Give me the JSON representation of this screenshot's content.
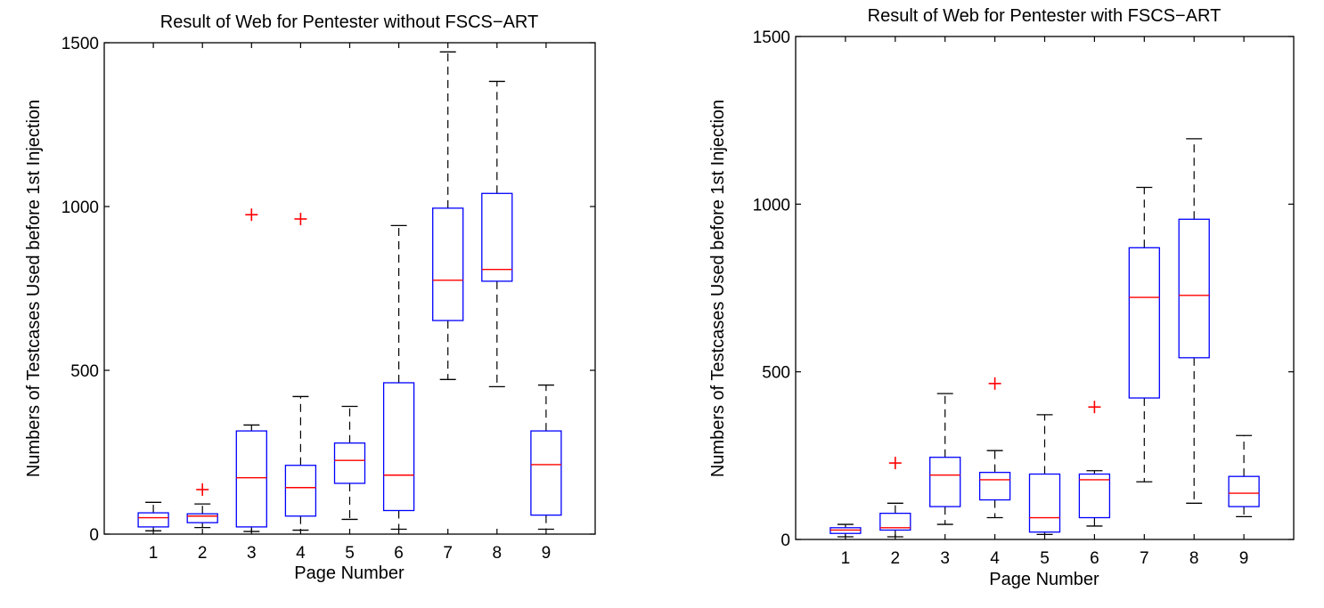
{
  "chart_data": [
    {
      "type": "boxplot",
      "title": "Result of Web for Pentester without FSCS−ART",
      "xlabel": "Page Number",
      "ylabel": "Numbers of Testcases Used before 1st Injection",
      "ylim": [
        0,
        1500
      ],
      "yticks": [
        0,
        500,
        1000,
        1500
      ],
      "categories": [
        "1",
        "2",
        "3",
        "4",
        "5",
        "6",
        "7",
        "8",
        "9"
      ],
      "grid": false,
      "colors": {
        "box": "#0000ff",
        "median": "#ff0000",
        "whisker": "#000000",
        "outlier": "#ff0000"
      },
      "boxes": [
        {
          "category": "1",
          "whisker_low": 10,
          "q1": 22,
          "median": 50,
          "q3": 65,
          "whisker_high": 97,
          "outliers": []
        },
        {
          "category": "2",
          "whisker_low": 20,
          "q1": 35,
          "median": 55,
          "q3": 62,
          "whisker_high": 92,
          "outliers": [
            136
          ]
        },
        {
          "category": "3",
          "whisker_low": 8,
          "q1": 22,
          "median": 172,
          "q3": 315,
          "whisker_high": 333,
          "outliers": [
            975
          ]
        },
        {
          "category": "4",
          "whisker_low": 12,
          "q1": 55,
          "median": 142,
          "q3": 210,
          "whisker_high": 420,
          "outliers": [
            962
          ]
        },
        {
          "category": "5",
          "whisker_low": 45,
          "q1": 155,
          "median": 225,
          "q3": 278,
          "whisker_high": 390,
          "outliers": []
        },
        {
          "category": "6",
          "whisker_low": 15,
          "q1": 72,
          "median": 180,
          "q3": 462,
          "whisker_high": 942,
          "outliers": []
        },
        {
          "category": "7",
          "whisker_low": 472,
          "q1": 652,
          "median": 775,
          "q3": 995,
          "whisker_high": 1472,
          "outliers": []
        },
        {
          "category": "8",
          "whisker_low": 450,
          "q1": 772,
          "median": 808,
          "q3": 1040,
          "whisker_high": 1382,
          "outliers": []
        },
        {
          "category": "9",
          "whisker_low": 15,
          "q1": 58,
          "median": 212,
          "q3": 315,
          "whisker_high": 455,
          "outliers": []
        }
      ]
    },
    {
      "type": "boxplot",
      "title": "Result of Web for Pentester with FSCS−ART",
      "xlabel": "Page Number",
      "ylabel": "Numbers of Testcases Used before 1st Injection",
      "ylim": [
        0,
        1500
      ],
      "yticks": [
        0,
        500,
        1000,
        1500
      ],
      "categories": [
        "1",
        "2",
        "3",
        "4",
        "5",
        "6",
        "7",
        "8",
        "9"
      ],
      "grid": false,
      "colors": {
        "box": "#0000ff",
        "median": "#ff0000",
        "whisker": "#000000",
        "outlier": "#ff0000"
      },
      "boxes": [
        {
          "category": "1",
          "whisker_low": 8,
          "q1": 18,
          "median": 28,
          "q3": 35,
          "whisker_high": 45,
          "outliers": []
        },
        {
          "category": "2",
          "whisker_low": 8,
          "q1": 28,
          "median": 35,
          "q3": 78,
          "whisker_high": 108,
          "outliers": [
            228
          ]
        },
        {
          "category": "3",
          "whisker_low": 45,
          "q1": 98,
          "median": 192,
          "q3": 245,
          "whisker_high": 435,
          "outliers": []
        },
        {
          "category": "4",
          "whisker_low": 65,
          "q1": 118,
          "median": 178,
          "q3": 200,
          "whisker_high": 265,
          "outliers": [
            465
          ]
        },
        {
          "category": "5",
          "whisker_low": 15,
          "q1": 22,
          "median": 65,
          "q3": 195,
          "whisker_high": 372,
          "outliers": []
        },
        {
          "category": "6",
          "whisker_low": 40,
          "q1": 65,
          "median": 178,
          "q3": 195,
          "whisker_high": 205,
          "outliers": [
            395
          ]
        },
        {
          "category": "7",
          "whisker_low": 172,
          "q1": 422,
          "median": 722,
          "q3": 870,
          "whisker_high": 1050,
          "outliers": []
        },
        {
          "category": "8",
          "whisker_low": 108,
          "q1": 542,
          "median": 728,
          "q3": 955,
          "whisker_high": 1195,
          "outliers": []
        },
        {
          "category": "9",
          "whisker_low": 68,
          "q1": 98,
          "median": 138,
          "q3": 188,
          "whisker_high": 310,
          "outliers": []
        }
      ]
    }
  ]
}
